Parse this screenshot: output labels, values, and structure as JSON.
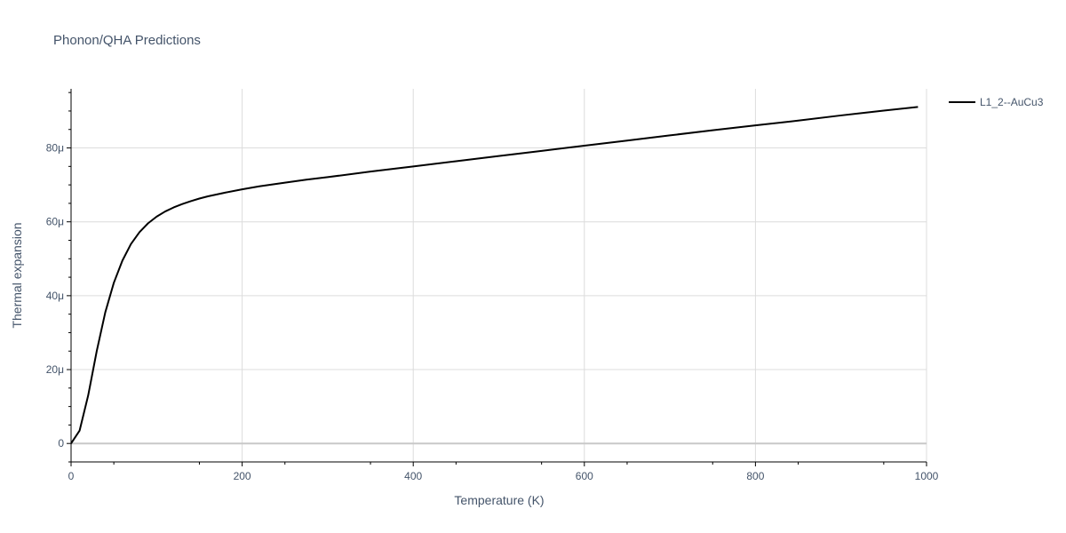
{
  "chart_data": {
    "type": "line",
    "title": "Phonon/QHA Predictions",
    "xlabel": "Temperature (K)",
    "ylabel": "Thermal expansion",
    "xlim": [
      0,
      1000
    ],
    "ylim": [
      -5e-06,
      9.6e-05
    ],
    "x_ticks": [
      0,
      200,
      400,
      600,
      800,
      1000
    ],
    "x_tick_labels": [
      "0",
      "200",
      "400",
      "600",
      "800",
      "1000"
    ],
    "y_ticks": [
      0,
      2e-05,
      4e-05,
      6e-05,
      8e-05
    ],
    "y_tick_labels": [
      "0",
      "20μ",
      "40μ",
      "60μ",
      "80μ"
    ],
    "grid": true,
    "legend_position": "top-right",
    "series": [
      {
        "name": "L1_2--AuCu3",
        "color": "#000000",
        "x": [
          0,
          10,
          20,
          30,
          40,
          50,
          60,
          70,
          80,
          90,
          100,
          110,
          120,
          130,
          140,
          150,
          160,
          180,
          200,
          220,
          250,
          275,
          300,
          350,
          400,
          450,
          500,
          550,
          600,
          650,
          700,
          750,
          800,
          850,
          900,
          950,
          990
        ],
        "y": [
          0,
          3.5e-06,
          1.3e-05,
          2.5e-05,
          3.55e-05,
          4.35e-05,
          4.95e-05,
          5.4e-05,
          5.72e-05,
          5.96e-05,
          6.14e-05,
          6.28e-05,
          6.39e-05,
          6.48e-05,
          6.56e-05,
          6.63e-05,
          6.69e-05,
          6.79e-05,
          6.88e-05,
          6.96e-05,
          7.06e-05,
          7.14e-05,
          7.21e-05,
          7.36e-05,
          7.5e-05,
          7.64e-05,
          7.78e-05,
          7.92e-05,
          8.06e-05,
          8.2e-05,
          8.34e-05,
          8.48e-05,
          8.61e-05,
          8.74e-05,
          8.88e-05,
          9.01e-05,
          9.11e-05
        ]
      }
    ]
  }
}
